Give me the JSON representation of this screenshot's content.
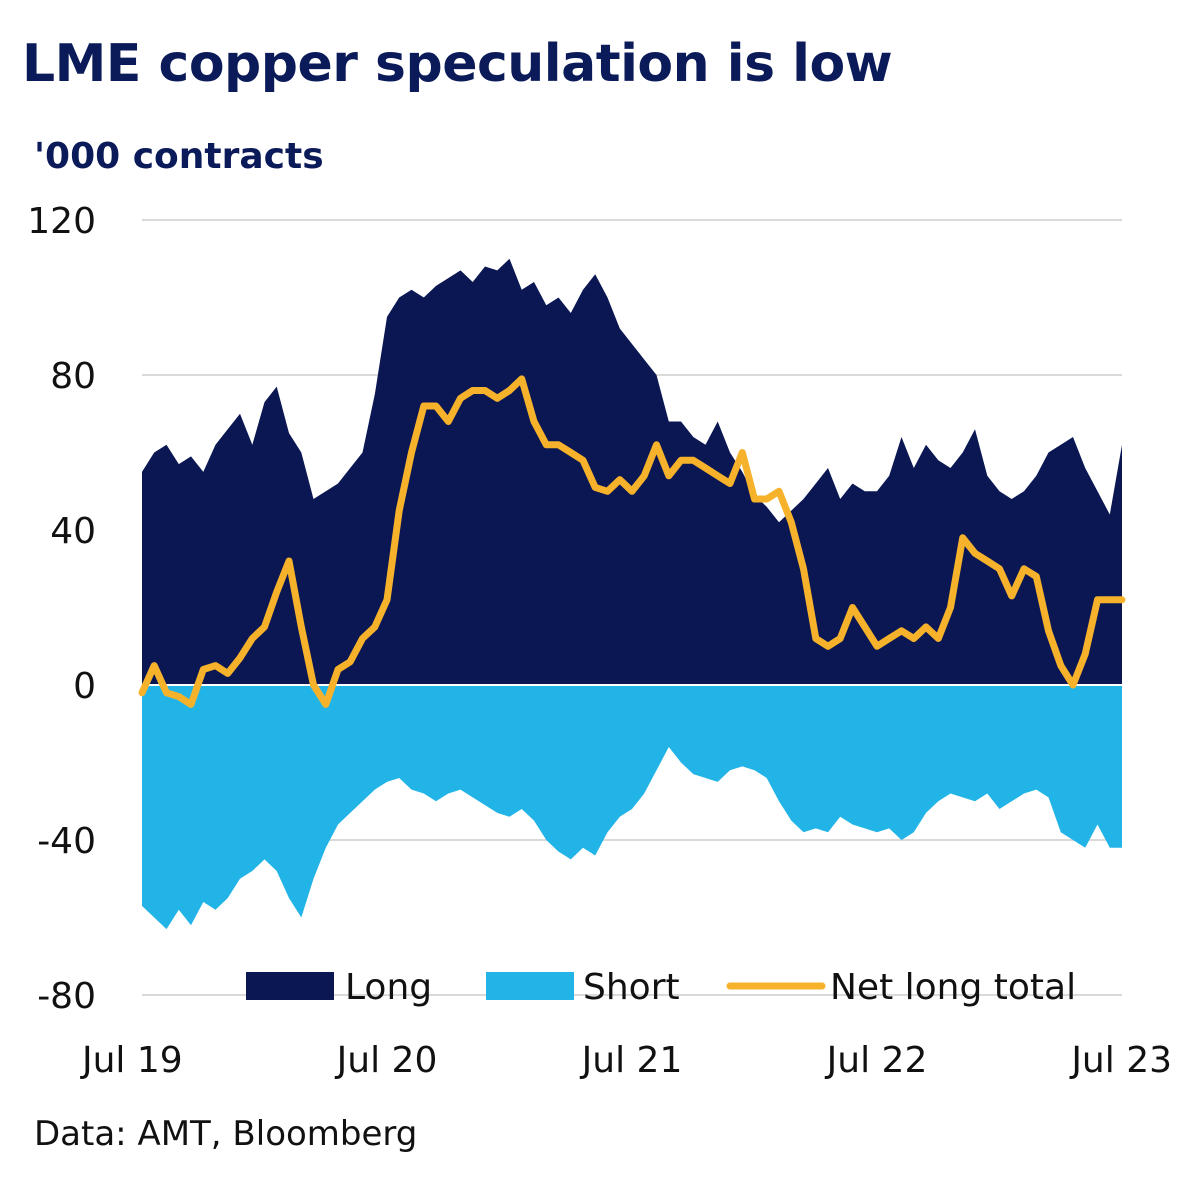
{
  "title": "LME copper speculation is low",
  "unit_label": "'000 contracts",
  "source": "Data: AMT, Bloomberg",
  "colors": {
    "long": "#0b1752",
    "short": "#22b4e6",
    "net": "#f7b22c",
    "grid": "#d9d9d9",
    "title": "#0b1a58"
  },
  "chart_data": {
    "type": "area",
    "title": "LME copper speculation is low",
    "ylabel": "'000 contracts",
    "xlabel": "",
    "ylim": [
      -80,
      120
    ],
    "yticks": [
      -80,
      -40,
      0,
      40,
      80,
      120
    ],
    "xlim": [
      2019.5,
      2023.5
    ],
    "xticks": [
      {
        "x": 2019.5,
        "label": "Jul 19"
      },
      {
        "x": 2020.5,
        "label": "Jul 20"
      },
      {
        "x": 2021.5,
        "label": "Jul 21"
      },
      {
        "x": 2022.5,
        "label": "Jul 22"
      },
      {
        "x": 2023.5,
        "label": "Jul 23"
      }
    ],
    "grid": true,
    "legend_position": "bottom",
    "series": [
      {
        "name": "Long",
        "kind": "area",
        "x": [
          2019.5,
          2019.55,
          2019.6,
          2019.65,
          2019.7,
          2019.75,
          2019.8,
          2019.85,
          2019.9,
          2019.95,
          2020.0,
          2020.05,
          2020.1,
          2020.15,
          2020.2,
          2020.25,
          2020.3,
          2020.35,
          2020.4,
          2020.45,
          2020.5,
          2020.55,
          2020.6,
          2020.65,
          2020.7,
          2020.75,
          2020.8,
          2020.85,
          2020.9,
          2020.95,
          2021.0,
          2021.05,
          2021.1,
          2021.15,
          2021.2,
          2021.25,
          2021.3,
          2021.35,
          2021.4,
          2021.45,
          2021.5,
          2021.55,
          2021.6,
          2021.65,
          2021.7,
          2021.75,
          2021.8,
          2021.85,
          2021.9,
          2021.95,
          2022.0,
          2022.05,
          2022.1,
          2022.15,
          2022.2,
          2022.25,
          2022.3,
          2022.35,
          2022.4,
          2022.45,
          2022.5,
          2022.55,
          2022.6,
          2022.65,
          2022.7,
          2022.75,
          2022.8,
          2022.85,
          2022.9,
          2022.95,
          2023.0,
          2023.05,
          2023.1,
          2023.15,
          2023.2,
          2023.25,
          2023.3,
          2023.35,
          2023.4,
          2023.45,
          2023.5
        ],
        "values": [
          55,
          60,
          62,
          57,
          59,
          55,
          62,
          66,
          70,
          62,
          73,
          77,
          65,
          60,
          48,
          50,
          52,
          56,
          60,
          75,
          95,
          100,
          102,
          100,
          103,
          105,
          107,
          104,
          108,
          107,
          110,
          102,
          104,
          98,
          100,
          96,
          102,
          106,
          100,
          92,
          88,
          84,
          80,
          68,
          68,
          64,
          62,
          68,
          60,
          55,
          49,
          46,
          42,
          45,
          48,
          52,
          56,
          48,
          52,
          50,
          50,
          54,
          64,
          56,
          62,
          58,
          56,
          60,
          66,
          54,
          50,
          48,
          50,
          54,
          60,
          62,
          64,
          56,
          50,
          44,
          62
        ],
        "color": "#0b1752"
      },
      {
        "name": "Short",
        "kind": "area",
        "x": [
          2019.5,
          2019.55,
          2019.6,
          2019.65,
          2019.7,
          2019.75,
          2019.8,
          2019.85,
          2019.9,
          2019.95,
          2020.0,
          2020.05,
          2020.1,
          2020.15,
          2020.2,
          2020.25,
          2020.3,
          2020.35,
          2020.4,
          2020.45,
          2020.5,
          2020.55,
          2020.6,
          2020.65,
          2020.7,
          2020.75,
          2020.8,
          2020.85,
          2020.9,
          2020.95,
          2021.0,
          2021.05,
          2021.1,
          2021.15,
          2021.2,
          2021.25,
          2021.3,
          2021.35,
          2021.4,
          2021.45,
          2021.5,
          2021.55,
          2021.6,
          2021.65,
          2021.7,
          2021.75,
          2021.8,
          2021.85,
          2021.9,
          2021.95,
          2022.0,
          2022.05,
          2022.1,
          2022.15,
          2022.2,
          2022.25,
          2022.3,
          2022.35,
          2022.4,
          2022.45,
          2022.5,
          2022.55,
          2022.6,
          2022.65,
          2022.7,
          2022.75,
          2022.8,
          2022.85,
          2022.9,
          2022.95,
          2023.0,
          2023.05,
          2023.1,
          2023.15,
          2023.2,
          2023.25,
          2023.3,
          2023.35,
          2023.4,
          2023.45,
          2023.5
        ],
        "values": [
          -57,
          -60,
          -63,
          -58,
          -62,
          -56,
          -58,
          -55,
          -50,
          -48,
          -45,
          -48,
          -55,
          -60,
          -50,
          -42,
          -36,
          -33,
          -30,
          -27,
          -25,
          -24,
          -27,
          -28,
          -30,
          -28,
          -27,
          -29,
          -31,
          -33,
          -34,
          -32,
          -35,
          -40,
          -43,
          -45,
          -42,
          -44,
          -38,
          -34,
          -32,
          -28,
          -22,
          -16,
          -20,
          -23,
          -24,
          -25,
          -22,
          -21,
          -22,
          -24,
          -30,
          -35,
          -38,
          -37,
          -38,
          -34,
          -36,
          -37,
          -38,
          -37,
          -40,
          -38,
          -33,
          -30,
          -28,
          -29,
          -30,
          -28,
          -32,
          -30,
          -28,
          -27,
          -29,
          -38,
          -40,
          -42,
          -36,
          -42,
          -42
        ],
        "color": "#22b4e6"
      },
      {
        "name": "Net long total",
        "kind": "line",
        "x": [
          2019.5,
          2019.55,
          2019.6,
          2019.65,
          2019.7,
          2019.75,
          2019.8,
          2019.85,
          2019.9,
          2019.95,
          2020.0,
          2020.05,
          2020.1,
          2020.15,
          2020.2,
          2020.25,
          2020.3,
          2020.35,
          2020.4,
          2020.45,
          2020.5,
          2020.55,
          2020.6,
          2020.65,
          2020.7,
          2020.75,
          2020.8,
          2020.85,
          2020.9,
          2020.95,
          2021.0,
          2021.05,
          2021.1,
          2021.15,
          2021.2,
          2021.25,
          2021.3,
          2021.35,
          2021.4,
          2021.45,
          2021.5,
          2021.55,
          2021.6,
          2021.65,
          2021.7,
          2021.75,
          2021.8,
          2021.85,
          2021.9,
          2021.95,
          2022.0,
          2022.05,
          2022.1,
          2022.15,
          2022.2,
          2022.25,
          2022.3,
          2022.35,
          2022.4,
          2022.45,
          2022.5,
          2022.55,
          2022.6,
          2022.65,
          2022.7,
          2022.75,
          2022.8,
          2022.85,
          2022.9,
          2022.95,
          2023.0,
          2023.05,
          2023.1,
          2023.15,
          2023.2,
          2023.25,
          2023.3,
          2023.35,
          2023.4,
          2023.45,
          2023.5
        ],
        "values": [
          -2,
          5,
          -2,
          -3,
          -5,
          4,
          5,
          3,
          7,
          12,
          15,
          24,
          32,
          15,
          0,
          -5,
          4,
          6,
          12,
          15,
          22,
          45,
          60,
          72,
          72,
          68,
          74,
          76,
          76,
          74,
          76,
          79,
          68,
          62,
          62,
          60,
          58,
          51,
          50,
          53,
          50,
          54,
          62,
          54,
          58,
          58,
          56,
          54,
          52,
          60,
          48,
          48,
          50,
          42,
          30,
          12,
          10,
          12,
          20,
          15,
          10,
          12,
          14,
          12,
          15,
          12,
          20,
          38,
          34,
          32,
          30,
          23,
          30,
          28,
          14,
          5,
          0,
          8,
          22,
          22,
          22
        ],
        "color": "#f7b22c"
      }
    ]
  }
}
